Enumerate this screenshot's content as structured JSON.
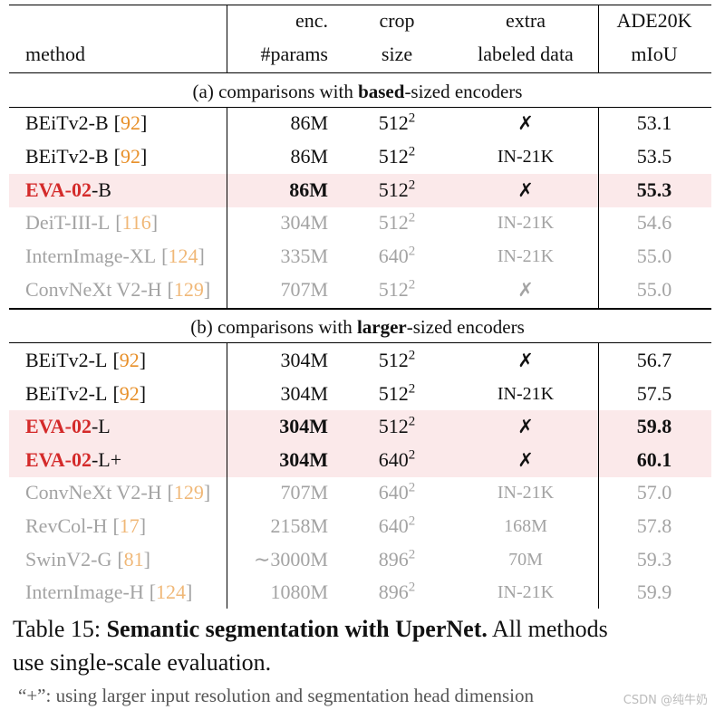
{
  "header": {
    "columns": [
      [
        "method"
      ],
      [
        "enc.",
        "#params"
      ],
      [
        "crop",
        "size"
      ],
      [
        "extra",
        "labeled data"
      ],
      [
        "ADE20K",
        "mIoU"
      ]
    ]
  },
  "citation_brackets": [
    "[",
    "]"
  ],
  "sections": [
    {
      "title": {
        "before": "(a) comparisons with ",
        "bold": "based",
        "after": "-sized encoders"
      },
      "rows": [
        {
          "method": "BEiTv2-B",
          "ref": "92",
          "params": "86M",
          "crop": "512",
          "crop_exp": "2",
          "extra": "✗",
          "miou": "53.1"
        },
        {
          "method": "BEiTv2-B",
          "ref": "92",
          "params": "86M",
          "crop": "512",
          "crop_exp": "2",
          "extra": "IN-21K",
          "miou": "53.5"
        },
        {
          "method": "EVA-02",
          "variant": "-B",
          "params": "86M",
          "crop": "512",
          "crop_exp": "2",
          "extra": "✗",
          "miou": "55.3",
          "highlight": true
        },
        {
          "method": "DeiT-III-L",
          "ref": "116",
          "params": "304M",
          "crop": "512",
          "crop_exp": "2",
          "extra": "IN-21K",
          "miou": "54.6",
          "muted": true
        },
        {
          "method": "InternImage-XL",
          "ref": "124",
          "params": "335M",
          "crop": "640",
          "crop_exp": "2",
          "extra": "IN-21K",
          "miou": "55.0",
          "muted": true
        },
        {
          "method": "ConvNeXt V2-H",
          "ref": "129",
          "params": "707M",
          "crop": "512",
          "crop_exp": "2",
          "extra": "✗",
          "miou": "55.0",
          "muted": true
        }
      ]
    },
    {
      "title": {
        "before": "(b) comparisons with ",
        "bold": "larger",
        "after": "-sized encoders"
      },
      "rows": [
        {
          "method": "BEiTv2-L",
          "ref": "92",
          "params": "304M",
          "crop": "512",
          "crop_exp": "2",
          "extra": "✗",
          "miou": "56.7"
        },
        {
          "method": "BEiTv2-L",
          "ref": "92",
          "params": "304M",
          "crop": "512",
          "crop_exp": "2",
          "extra": "IN-21K",
          "miou": "57.5"
        },
        {
          "method": "EVA-02",
          "variant": "-L",
          "params": "304M",
          "crop": "512",
          "crop_exp": "2",
          "extra": "✗",
          "miou": "59.8",
          "highlight": true
        },
        {
          "method": "EVA-02",
          "variant": "-L+",
          "params": "304M",
          "crop": "640",
          "crop_exp": "2",
          "extra": "✗",
          "miou": "60.1",
          "highlight": true
        },
        {
          "method": "ConvNeXt V2-H",
          "ref": "129",
          "params": "707M",
          "crop": "640",
          "crop_exp": "2",
          "extra": "IN-21K",
          "miou": "57.0",
          "muted": true
        },
        {
          "method": "RevCol-H",
          "ref": "17",
          "params": "2158M",
          "crop": "640",
          "crop_exp": "2",
          "extra": "168M",
          "miou": "57.8",
          "muted": true
        },
        {
          "method": "SwinV2-G",
          "ref": "81",
          "params": "∼3000M",
          "crop": "896",
          "crop_exp": "2",
          "extra": "70M",
          "miou": "59.3",
          "muted": true
        },
        {
          "method": "InternImage-H",
          "ref": "124",
          "params": "1080M",
          "crop": "896",
          "crop_exp": "2",
          "extra": "IN-21K",
          "miou": "59.9",
          "muted": true
        }
      ]
    }
  ],
  "caption": {
    "label": "Table 15: ",
    "bold": "Semantic segmentation with UperNet.",
    "text": " All methods",
    "text2": "use single-scale evaluation."
  },
  "footnote": "“+”: using larger input resolution and segmentation head dimension",
  "watermark": "CSDN @纯牛奶"
}
